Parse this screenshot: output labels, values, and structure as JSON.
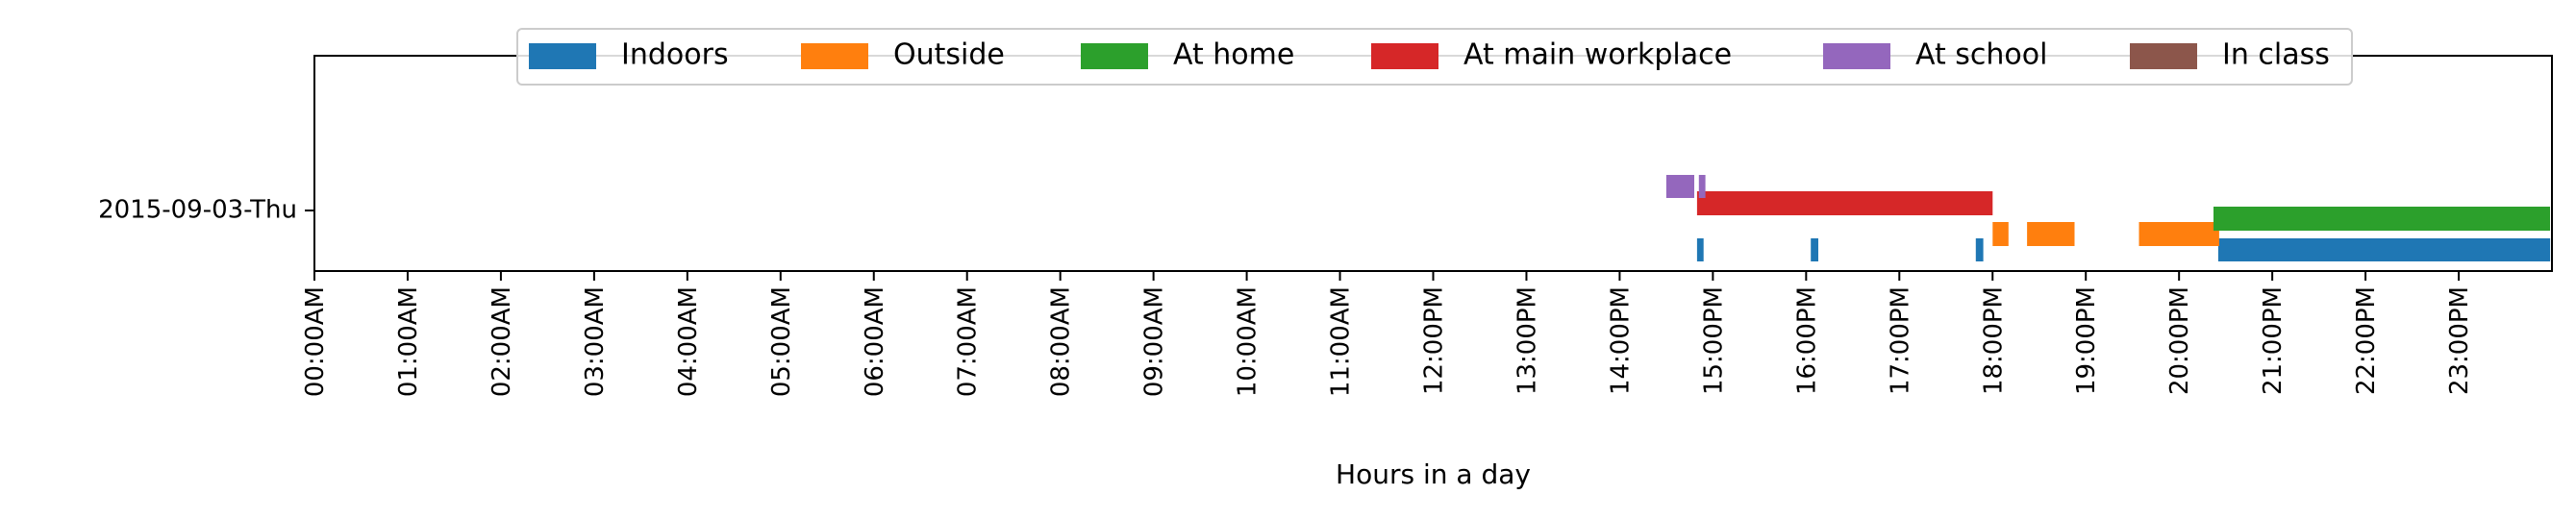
{
  "chart_data": {
    "type": "timeline",
    "xlabel": "Hours in a day",
    "ylabel": "",
    "xlim": [
      0,
      24
    ],
    "legend_position": "top-center",
    "grid": false,
    "date_label": "2015-09-03-Thu",
    "x_tick_labels": [
      "00:00AM",
      "01:00AM",
      "02:00AM",
      "03:00AM",
      "04:00AM",
      "05:00AM",
      "06:00AM",
      "07:00AM",
      "08:00AM",
      "09:00AM",
      "10:00AM",
      "11:00AM",
      "12:00PM",
      "13:00PM",
      "14:00PM",
      "15:00PM",
      "16:00PM",
      "17:00PM",
      "18:00PM",
      "19:00PM",
      "20:00PM",
      "21:00PM",
      "22:00PM",
      "23:00PM"
    ],
    "x_tick_values": [
      0,
      1,
      2,
      3,
      4,
      5,
      6,
      7,
      8,
      9,
      10,
      11,
      12,
      13,
      14,
      15,
      16,
      17,
      18,
      19,
      20,
      21,
      22,
      23
    ],
    "series": [
      {
        "key": "indoors",
        "name": "Indoors",
        "color": "#1f77b4",
        "intervals": [
          [
            14.83,
            14.9
          ],
          [
            16.05,
            16.13
          ],
          [
            17.82,
            17.9
          ],
          [
            20.42,
            23.98
          ]
        ]
      },
      {
        "key": "outside",
        "name": "Outside",
        "color": "#ff7f0e",
        "intervals": [
          [
            18.0,
            18.17
          ],
          [
            18.37,
            18.88
          ],
          [
            19.57,
            20.43
          ]
        ]
      },
      {
        "key": "at_home",
        "name": "At home",
        "color": "#2ca02c",
        "intervals": [
          [
            20.37,
            23.98
          ]
        ]
      },
      {
        "key": "at_main_workplace",
        "name": "At main workplace",
        "color": "#d62728",
        "intervals": [
          [
            14.83,
            18.0
          ]
        ]
      },
      {
        "key": "at_school",
        "name": "At school",
        "color": "#9467bd",
        "intervals": [
          [
            14.5,
            14.8
          ],
          [
            14.85,
            14.92
          ]
        ]
      },
      {
        "key": "in_class",
        "name": "In class",
        "color": "#8c564b",
        "intervals": []
      }
    ]
  }
}
